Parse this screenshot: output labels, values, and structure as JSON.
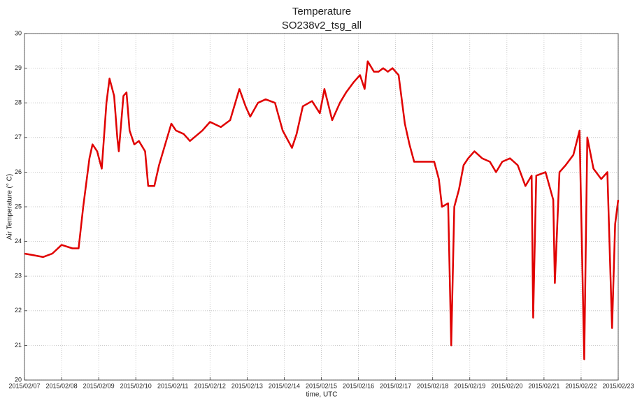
{
  "chart_data": {
    "type": "line",
    "title": "Temperature",
    "subtitle": "SO238v2_tsg_all",
    "y_label": "Air Temperature (° C)",
    "x_label": "time, UTC",
    "x": [
      "2015-02-07T00:00",
      "2015-02-07T06:00",
      "2015-02-07T12:00",
      "2015-02-07T18:00",
      "2015-02-08T00:00",
      "2015-02-08T07:00",
      "2015-02-08T11:00",
      "2015-02-08T14:00",
      "2015-02-08T18:00",
      "2015-02-08T20:00",
      "2015-02-08T23:00",
      "2015-02-09T02:00",
      "2015-02-09T05:00",
      "2015-02-09T07:00",
      "2015-02-09T10:00",
      "2015-02-09T12:00",
      "2015-02-09T13:00",
      "2015-02-09T16:00",
      "2015-02-09T18:00",
      "2015-02-09T20:00",
      "2015-02-09T23:00",
      "2015-02-10T02:00",
      "2015-02-10T06:00",
      "2015-02-10T08:00",
      "2015-02-10T12:00",
      "2015-02-10T15:00",
      "2015-02-10T19:00",
      "2015-02-10T23:00",
      "2015-02-11T02:00",
      "2015-02-11T07:00",
      "2015-02-11T11:00",
      "2015-02-11T19:00",
      "2015-02-12T00:00",
      "2015-02-12T07:00",
      "2015-02-12T13:00",
      "2015-02-12T19:00",
      "2015-02-12T23:00",
      "2015-02-13T02:00",
      "2015-02-13T07:00",
      "2015-02-13T12:00",
      "2015-02-13T18:00",
      "2015-02-13T23:00",
      "2015-02-14T05:00",
      "2015-02-14T08:00",
      "2015-02-14T12:00",
      "2015-02-14T18:00",
      "2015-02-14T23:00",
      "2015-02-15T02:00",
      "2015-02-15T07:00",
      "2015-02-15T12:00",
      "2015-02-15T16:00",
      "2015-02-15T21:00",
      "2015-02-16T01:00",
      "2015-02-16T04:00",
      "2015-02-16T06:00",
      "2015-02-16T10:00",
      "2015-02-16T13:00",
      "2015-02-16T16:00",
      "2015-02-16T19:00",
      "2015-02-16T22:00",
      "2015-02-17T02:00",
      "2015-02-17T06:00",
      "2015-02-17T09:00",
      "2015-02-17T12:00",
      "2015-02-17T18:00",
      "2015-02-18T01:00",
      "2015-02-18T04:00",
      "2015-02-18T06:00",
      "2015-02-18T10:00",
      "2015-02-18T12:00",
      "2015-02-18T14:00",
      "2015-02-18T17:00",
      "2015-02-18T20:00",
      "2015-02-18T23:00",
      "2015-02-19T03:00",
      "2015-02-19T08:00",
      "2015-02-19T13:00",
      "2015-02-19T17:00",
      "2015-02-19T21:00",
      "2015-02-20T02:00",
      "2015-02-20T07:00",
      "2015-02-20T12:00",
      "2015-02-20T16:00",
      "2015-02-20T17:00",
      "2015-02-20T19:00",
      "2015-02-21T01:00",
      "2015-02-21T06:00",
      "2015-02-21T07:00",
      "2015-02-21T10:00",
      "2015-02-21T14:00",
      "2015-02-21T19:00",
      "2015-02-21T23:00",
      "2015-02-22T02:00",
      "2015-02-22T04:00",
      "2015-02-22T08:00",
      "2015-02-22T13:00",
      "2015-02-22T17:00",
      "2015-02-22T20:00",
      "2015-02-22T22:00",
      "2015-02-23T00:00"
    ],
    "series": [
      {
        "name": "Air Temperature",
        "color": "#e00000",
        "values": [
          23.65,
          23.6,
          23.55,
          23.65,
          23.9,
          23.8,
          23.8,
          25.0,
          26.4,
          26.8,
          26.6,
          26.1,
          28.0,
          28.7,
          28.2,
          27.0,
          26.6,
          28.2,
          28.3,
          27.2,
          26.8,
          26.9,
          26.6,
          25.6,
          25.6,
          26.2,
          26.8,
          27.4,
          27.2,
          27.1,
          26.9,
          27.2,
          27.45,
          27.3,
          27.5,
          28.4,
          27.9,
          27.6,
          28.0,
          28.1,
          28.0,
          27.2,
          26.7,
          27.1,
          27.9,
          28.05,
          27.7,
          28.4,
          27.5,
          28.0,
          28.3,
          28.6,
          28.8,
          28.4,
          29.2,
          28.9,
          28.9,
          29.0,
          28.9,
          29.0,
          28.8,
          27.4,
          26.8,
          26.3,
          26.3,
          26.3,
          25.8,
          25.0,
          25.1,
          21.0,
          25.0,
          25.5,
          26.2,
          26.4,
          26.6,
          26.4,
          26.3,
          26.0,
          26.3,
          26.4,
          26.2,
          25.6,
          25.9,
          21.8,
          25.9,
          26.0,
          25.2,
          22.8,
          26.0,
          26.2,
          26.5,
          27.2,
          20.6,
          27.0,
          26.1,
          25.8,
          26.0,
          21.5,
          24.5,
          25.2
        ]
      }
    ],
    "xlim": [
      "2015/02/07",
      "2015/02/23"
    ],
    "xticks": [
      "2015/02/07",
      "2015/02/08",
      "2015/02/09",
      "2015/02/10",
      "2015/02/11",
      "2015/02/12",
      "2015/02/13",
      "2015/02/14",
      "2015/02/15",
      "2015/02/16",
      "2015/02/17",
      "2015/02/18",
      "2015/02/19",
      "2015/02/20",
      "2015/02/21",
      "2015/02/22",
      "2015/02/23"
    ],
    "ylim": [
      20,
      30
    ],
    "yticks": [
      20,
      21,
      22,
      23,
      24,
      25,
      26,
      27,
      28,
      29,
      30
    ],
    "grid": true
  }
}
